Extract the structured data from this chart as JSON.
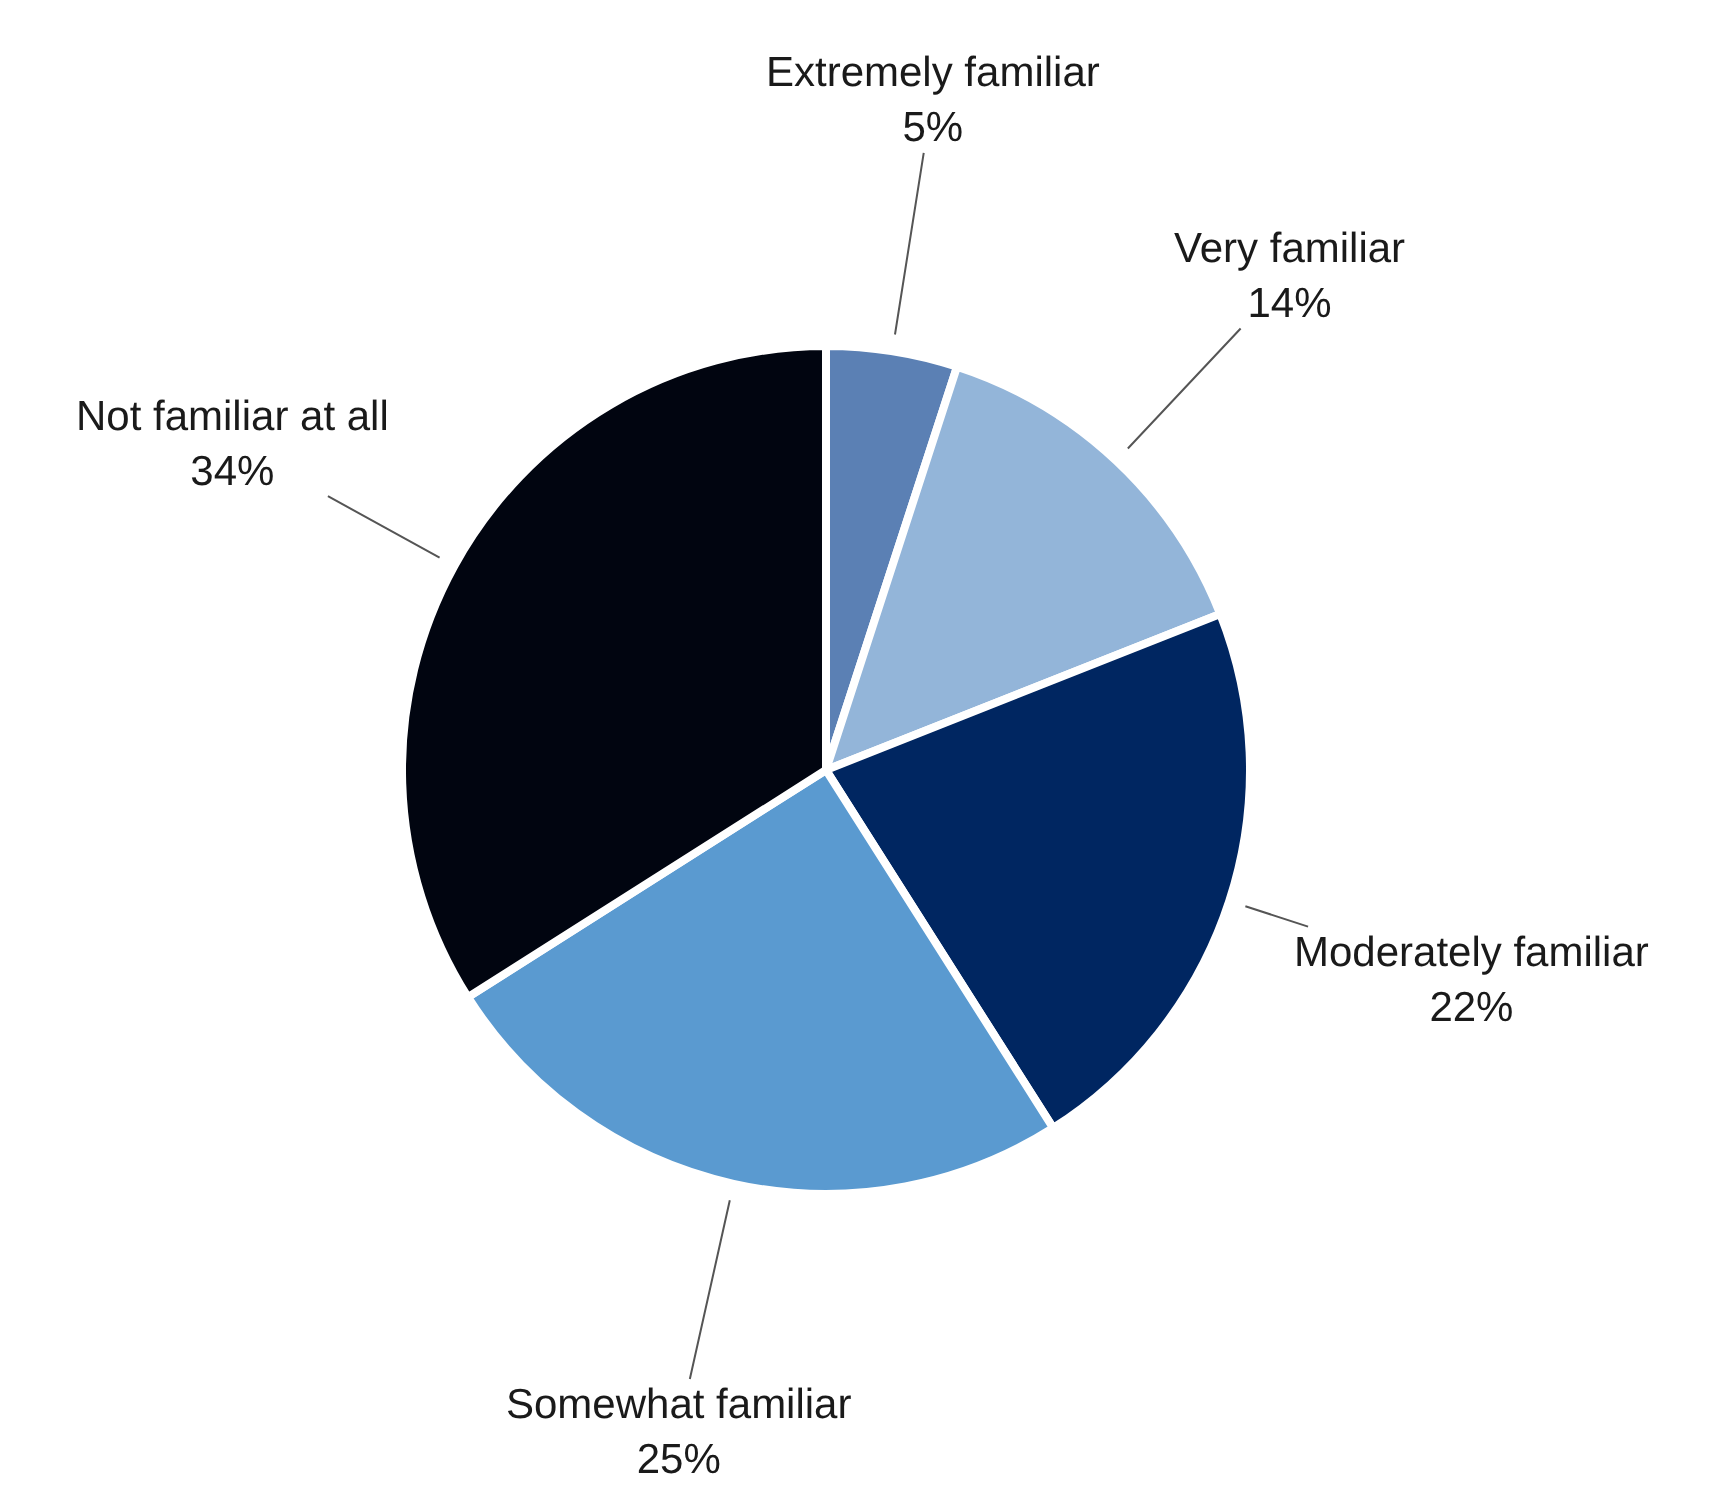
{
  "chart_data": {
    "type": "pie",
    "categories": [
      "Extremely familiar",
      "Very familiar",
      "Moderately familiar",
      "Somewhat familiar",
      "Not familiar at all"
    ],
    "values": [
      5,
      14,
      22,
      25,
      34
    ],
    "value_labels": [
      "5%",
      "14%",
      "22%",
      "25%",
      "34%"
    ],
    "colors": [
      "#5b80b4",
      "#93b5d9",
      "#002661",
      "#5a9ad0",
      "#010510"
    ]
  }
}
